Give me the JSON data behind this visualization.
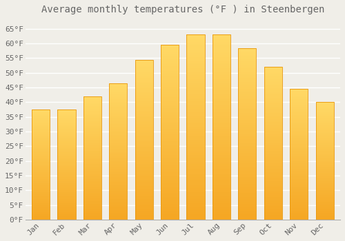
{
  "title": "Average monthly temperatures (°F ) in Steenbergen",
  "months": [
    "Jan",
    "Feb",
    "Mar",
    "Apr",
    "May",
    "Jun",
    "Jul",
    "Aug",
    "Sep",
    "Oct",
    "Nov",
    "Dec"
  ],
  "values": [
    37.5,
    37.5,
    42.0,
    46.5,
    54.5,
    59.5,
    63.0,
    63.0,
    58.5,
    52.0,
    44.5,
    40.0
  ],
  "bar_color_bottom": "#F5A623",
  "bar_color_top": "#FFD966",
  "bar_edge_color": "#E8960A",
  "background_color": "#F0EEE8",
  "plot_bg_color": "#F0EEE8",
  "grid_color": "#FFFFFF",
  "ytick_labels": [
    "0°F",
    "5°F",
    "10°F",
    "15°F",
    "20°F",
    "25°F",
    "30°F",
    "35°F",
    "40°F",
    "45°F",
    "50°F",
    "55°F",
    "60°F",
    "65°F"
  ],
  "ytick_values": [
    0,
    5,
    10,
    15,
    20,
    25,
    30,
    35,
    40,
    45,
    50,
    55,
    60,
    65
  ],
  "ylim": [
    0,
    68
  ],
  "title_fontsize": 10,
  "tick_fontsize": 8,
  "font_color": "#666666"
}
